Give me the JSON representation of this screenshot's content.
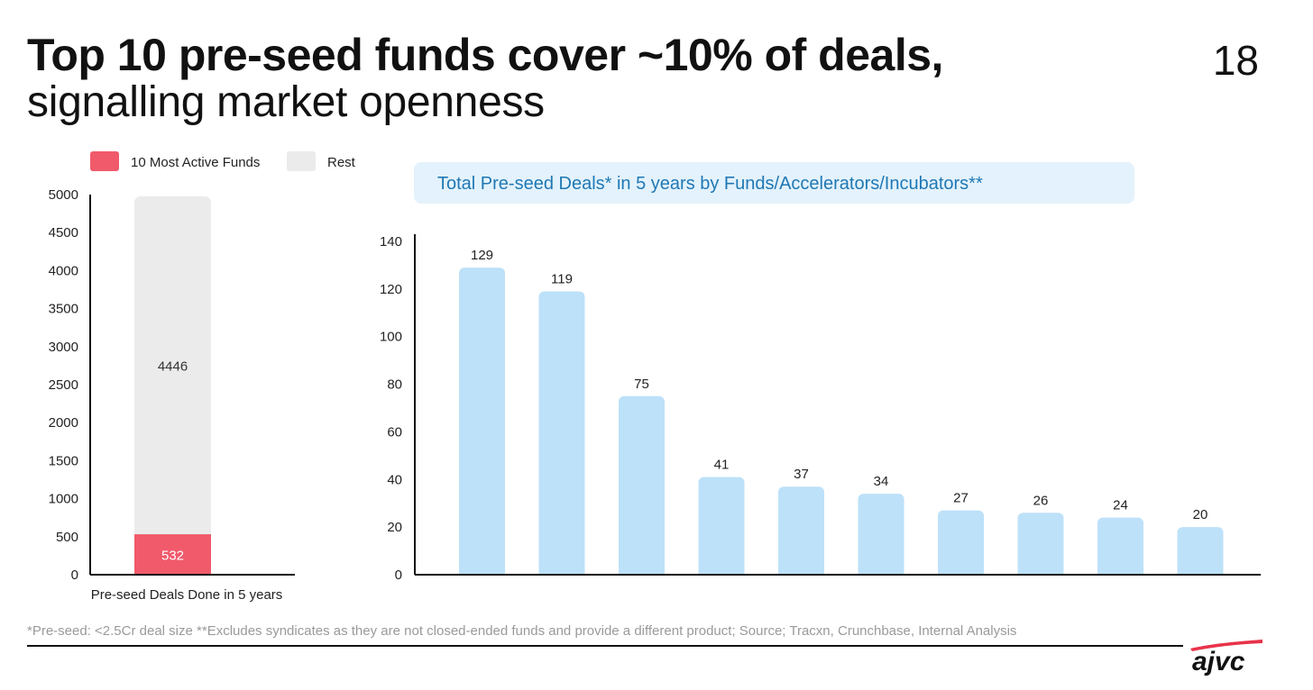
{
  "header": {
    "title": "Top 10 pre-seed funds cover ~10% of deals,",
    "subtitle": "signalling market openness",
    "page_number": "18"
  },
  "colors": {
    "top_funds": "#F05A6B",
    "rest": "#EBEBEB",
    "bar": "#BDE1F9",
    "banner_bg": "#E3F2FC",
    "banner_text": "#1F78B4",
    "logo_red": "#E8334A",
    "axis": "#111111"
  },
  "chart_data": [
    {
      "type": "bar",
      "stacked": true,
      "categories": [
        "Pre-seed Deals Done in 5 years"
      ],
      "series": [
        {
          "name": "10 Most Active Funds",
          "values": [
            532
          ]
        },
        {
          "name": "Rest",
          "values": [
            4446
          ]
        }
      ],
      "xlabel": "Pre-seed Deals Done in 5 years",
      "ylabel": "",
      "ylim": [
        0,
        5000
      ],
      "yticks": [
        0,
        500,
        1000,
        1500,
        2000,
        2500,
        3000,
        3500,
        4000,
        4500,
        5000
      ],
      "legend": "top",
      "grid": false
    },
    {
      "type": "bar",
      "title": "Total Pre-seed Deals* in 5 years by Funds/Accelerators/Incubators**",
      "categories": [
        "",
        "",
        "",
        "",
        "",
        "",
        "",
        "",
        "",
        ""
      ],
      "values": [
        129,
        119,
        75,
        41,
        37,
        34,
        27,
        26,
        24,
        20
      ],
      "xlabel": "",
      "ylabel": "",
      "ylim": [
        0,
        140
      ],
      "yticks": [
        0,
        20,
        40,
        60,
        80,
        100,
        120,
        140
      ],
      "grid": false
    }
  ],
  "footer": {
    "note": "*Pre-seed: <2.5Cr deal size **Excludes syndicates as they are not closed-ended funds and provide a different product; Source; Tracxn, Crunchbase, Internal Analysis",
    "logo_text": "ajvc"
  }
}
